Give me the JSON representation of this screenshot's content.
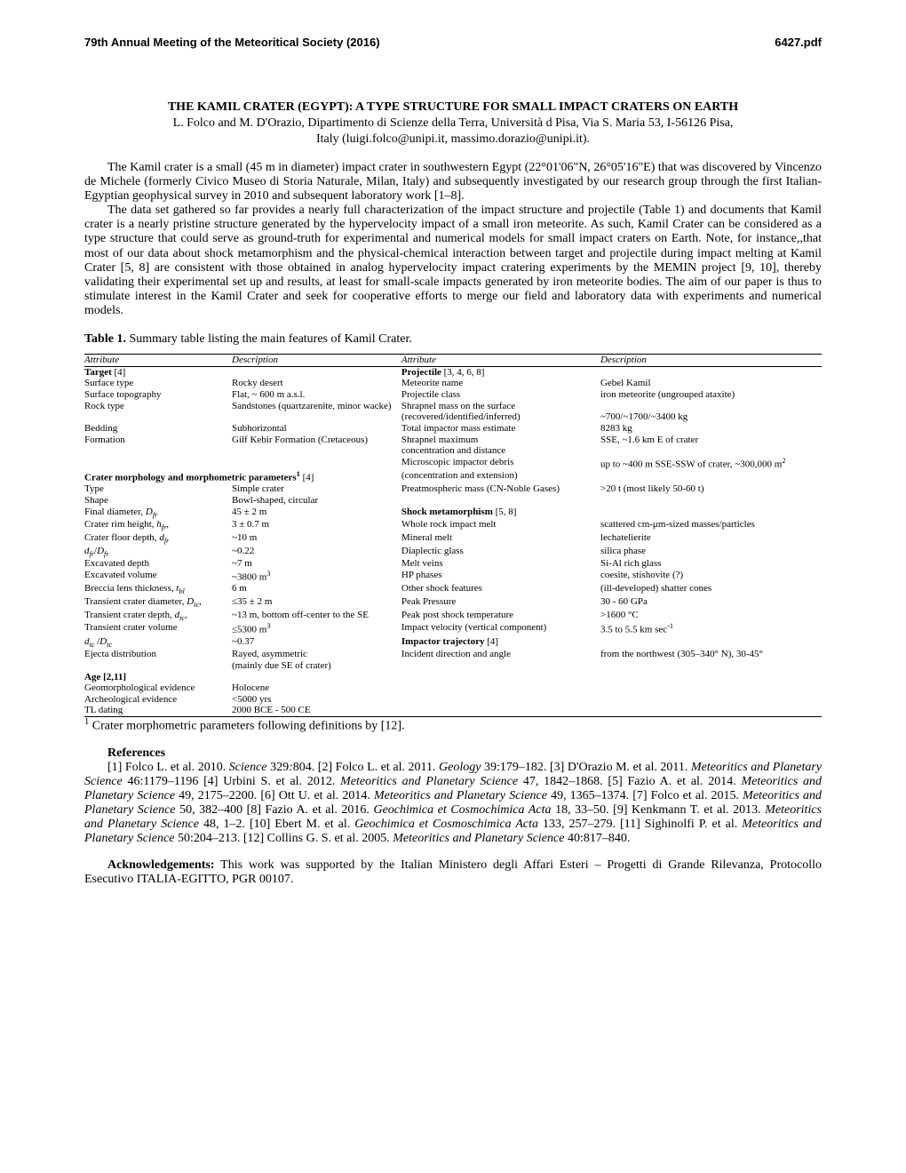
{
  "header": {
    "left": "79th Annual Meeting of the Meteoritical Society (2016)",
    "right": "6427.pdf"
  },
  "title": "THE KAMIL CRATER (EGYPT): A TYPE STRUCTURE FOR SMALL IMPACT CRATERS ON EARTH",
  "authors": "L. Folco  and M. D'Orazio, Dipartimento di Scienze della Terra, Università d Pisa, Via S. Maria 53, I-56126 Pisa,",
  "affil": "Italy (luigi.folco@unipi.it, massimo.dorazio@unipi.it).",
  "para1": "The Kamil crater is a small (45 m in diameter) impact crater in southwestern Egypt (22°01'06\"N, 26°05'16\"E) that was discovered by Vincenzo de Michele (formerly Civico Museo di Storia Naturale, Milan, Italy) and subsequently investigated by our research group through the first Italian-Egyptian geophysical survey in 2010 and subsequent laboratory work [1–8].",
  "para2": "The data set gathered so far provides a nearly full characterization of the impact structure and projectile (Table 1) and documents that Kamil crater is a nearly pristine structure generated by the hypervelocity impact of a small iron meteorite. As such, Kamil Crater can be considered as a type structure that could serve as ground-truth for experimental and numerical models for small impact craters on Earth. Note, for instance,,that most of our data about shock metamorphism and the physical-chemical interaction between target and projectile during impact melting at Kamil Crater [5, 8] are consistent with those obtained in analog hypervelocity impact cratering experiments by the MEMIN project [9, 10], thereby validating their experimental set up and results, at least for small-scale impacts generated by iron meteorite bodies. The aim of our paper is thus to stimulate interest in the Kamil Crater and seek for cooperative efforts to merge our field and laboratory data with experiments and numerical models.",
  "table_caption_bold": "Table 1.",
  "table_caption_rest": " Summary table listing the main features of Kamil Crater.",
  "col_headers": {
    "a": "Attribute",
    "b": "Description",
    "c": "Attribute",
    "d": "Description"
  },
  "sections": {
    "target": "Target",
    "target_ref": " [4]",
    "cm": "Crater morphology and morphometric parameters",
    "cm_sup": "1",
    "cm_ref": " [4]",
    "age": "Age [2,11]",
    "proj": "Projectile",
    "proj_ref": " [3, 4, 6, 8]",
    "shock": "Shock metamorphism",
    "shock_ref": " [5, 8]",
    "traj": "Impactor trajectory",
    "traj_ref": " [4]"
  },
  "left": {
    "r1a": "Surface type",
    "r1b": "Rocky desert",
    "r2a": "Surface topography",
    "r2b": "Flat, ~ 600 m a.s.l.",
    "r3a": "Rock type",
    "r3b": "Sandstones (quartzarenite, minor wacke)",
    "r4a": "Bedding",
    "r4b": "Subhorizontal",
    "r5a": "Formation",
    "r5b": "Gilf Kebir Formation (Cretaceous)",
    "r6a": "Type",
    "r6b": "Simple crater",
    "r7a": "Shape",
    "r7b": "Bowl-shaped, circular",
    "r8a_pre": "Final diameter, ",
    "r8a_i": "D",
    "r8a_sub": "fr",
    "r8b": "45 ± 2 m",
    "r9a_pre": "Crater rim height, ",
    "r9a_i": "h",
    "r9a_sub": "fr",
    "r9a_post": ",",
    "r9b": "3 ± 0.7 m",
    "r10a_pre": "Crater floor depth, ",
    "r10a_i": "d",
    "r10a_sub": "fr",
    "r10b": "~10 m",
    "r11a_i1": "d",
    "r11a_sub1": "fr",
    "r11a_slash": "/",
    "r11a_i2": "D",
    "r11a_sub2": "fr",
    "r11b": "~0.22",
    "r12a": "Excavated depth",
    "r12b": "~7 m",
    "r13a": "Excavated  volume",
    "r13b_pre": "~3800 m",
    "r13b_sup": "3",
    "r14a_pre": "Breccia lens thickness, ",
    "r14a_i": "t",
    "r14a_sub": "bl",
    "r14b": "6 m",
    "r15a_pre": "Transient crater diameter, ",
    "r15a_i": "D",
    "r15a_sub": "tc",
    "r15a_post": ",",
    "r15b": "≤35 ± 2 m",
    "r16a_pre": "Transient crater depth, ",
    "r16a_i": "d",
    "r16a_sub": "tc",
    "r16a_post": ",",
    "r16b": "~13 m, bottom off-center to the SE",
    "r17a": "Transient crater volume",
    "r17b_pre": "≤5300 m",
    "r17b_sup": "3",
    "r18a_i1": "d",
    "r18a_sub1": "tc",
    "r18a_slash": " /",
    "r18a_i2": "D",
    "r18a_sub2": "tc",
    "r18b": "~0.37",
    "r19a": "Ejecta distribution",
    "r19b": "Rayed, asymmetric",
    "r19b2": "(mainly due SE of crater)",
    "r20a": "Geomorphological evidence",
    "r20b": "Holocene",
    "r21a": "Archeological evidence",
    "r21b": "<5000 yrs",
    "r22a": "TL dating",
    "r22b": "2000 BCE - 500 CE"
  },
  "right": {
    "r1c": "Meteorite name",
    "r1d": "Gebel Kamil",
    "r2c": "Projectile class",
    "r2d": "iron meteorite (ungrouped ataxite)",
    "r3c": "Shrapnel mass on the surface",
    "r3c2": "(recovered/identified/inferred)",
    "r3d": "~700/~1700/~3400 kg",
    "r4c": "Total impactor mass estimate",
    "r4d": "8283 kg",
    "r5c": "Shrapnel maximum",
    "r5d": "SSE, ~1.6 km E of crater",
    "r5c2": "concentration and distance",
    "r6c": "Microscopic impactor debris",
    "r6d_pre": "up to ~400 m SSE-SSW of crater, ~300,000 m",
    "r6d_sup": "2",
    "r6c2": "(concentration and extension)",
    "r7c": "Preatmospheric mass (CN-Noble Gases)",
    "r7d": ">20 t (most likely 50-60 t)",
    "r8c": "Whole rock impact melt",
    "r8d": "scattered cm-μm-sized masses/particles",
    "r9c": "Mineral melt",
    "r9d": "lechatelierite",
    "r10c": "Diaplectic glass",
    "r10d": "silica phase",
    "r11c": "Melt veins",
    "r11d": "Si-Al rich glass",
    "r12c": "HP phases",
    "r12d": "coesite, stishovite (?)",
    "r13c": "Other shock features",
    "r13d": "(ill-developed) shatter cones",
    "r14c": "Peak Pressure",
    "r14d": "30 - 60 GPa",
    "r15c": "Peak post shock temperature",
    "r15d": ">1600 °C",
    "r16c": "Impact velocity (vertical component)",
    "r16d_pre": "3.5 to 5.5 km sec",
    "r16d_sup": "-1",
    "r17c": "Incident direction and angle",
    "r17d": "from the northwest (305–340°  N), 30-45°"
  },
  "footnote_sup": "1",
  "footnote": " Crater morphometric parameters following definitions by [12].",
  "refs_head": "References",
  "refs_pieces": {
    "p0": "[1] Folco L. et al. 2010. ",
    "j1": "Science",
    "p1": " 329",
    "colon1": ":",
    "p1b": "804. [2] Folco L. et al. 2011. ",
    "j2": "Geology",
    "p2": " 39:179–182. [3] D'Orazio M. et al. 2011. ",
    "j3": "Meteoritics and Planetary Science",
    "p3": " 46:1179–1196 [4] Urbini S. et al. 2012. ",
    "j4": "Meteoritics and Planetary Science",
    "p4": " 47, 1842–1868. [5] Fazio A. et al. 2014. ",
    "j5": "Meteoritics and Planetary Science",
    "p5": " 49, 2175–2200. [6] Ott U. et al. 2014. ",
    "j6": "Meteoritics and Planetary Science",
    "p6": " 49, 1365–1374. [7] Folco et al. 2015. ",
    "j7": "Meteoritics and Planetary Science",
    "p7": " 50, 382–400 [8] Fazio A. et al. 2016. ",
    "j8": "Geochimica et Cosmochimica Acta",
    "p8": " 18, 33–50. [9] Kenkmann T. et al. 2013. ",
    "j9": "Meteoritics and Planetary Science",
    "p9": " 48, 1–2. [10] Ebert M. et al. ",
    "j10": "Geochimica et Cosmoschimica Acta",
    "p10": " 133, 257–279. [11] Sighinolfi P. et al. ",
    "j11": "Meteoritics and Planetary Science",
    "p11": " 50:204–213. [12] Collins G. S. et al. 2005. ",
    "j12": "Meteoritics and Planetary Science",
    "p12": " 40:817–840."
  },
  "ack_bold": "Acknowledgements:",
  "ack_rest": " This work was supported by the Italian Ministero degli Affari Esteri – Progetti di Grande Rilevanza, Protocollo Esecutivo ITALIA-EGITTO, PGR 00107."
}
